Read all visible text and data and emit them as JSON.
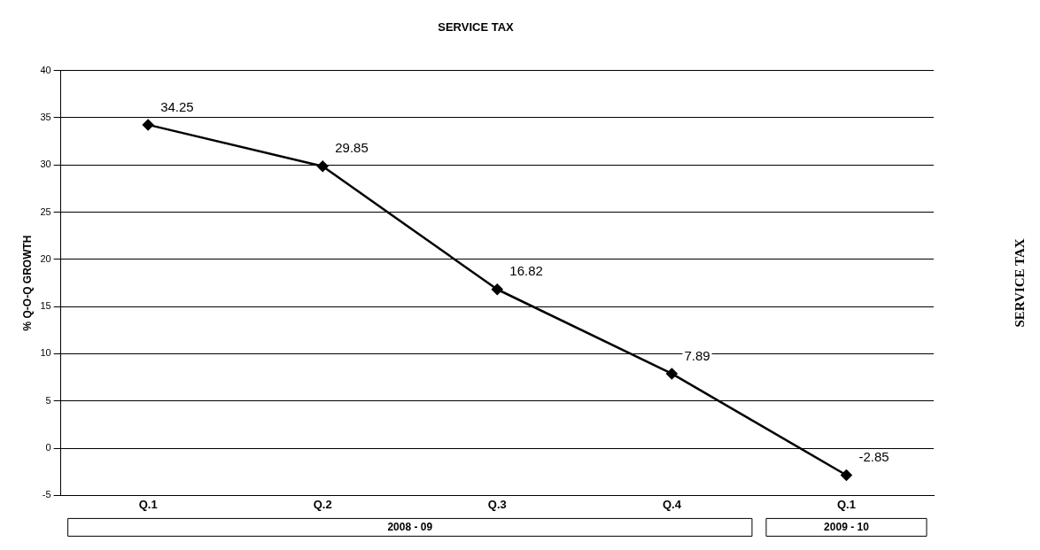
{
  "chart_data": {
    "type": "line",
    "title": "SERVICE TAX",
    "ylabel": "% Q-O-Q GROWTH",
    "categories": [
      "Q.1",
      "Q.2",
      "Q.3",
      "Q.4",
      "Q.1"
    ],
    "series": [
      {
        "color": "#000000",
        "values": [
          34.25,
          29.85,
          16.82,
          7.89,
          -2.85
        ]
      }
    ],
    "ylim": [
      -5,
      40
    ],
    "yticks": [
      -5,
      0,
      5,
      10,
      15,
      20,
      25,
      30,
      35,
      40
    ],
    "grid": "y",
    "legend": false,
    "marker": "diamond",
    "line_style": "solid",
    "data_labels": true,
    "annotations": [
      "2008 - 09",
      "2009 - 10",
      "SERVICE TAX"
    ]
  }
}
